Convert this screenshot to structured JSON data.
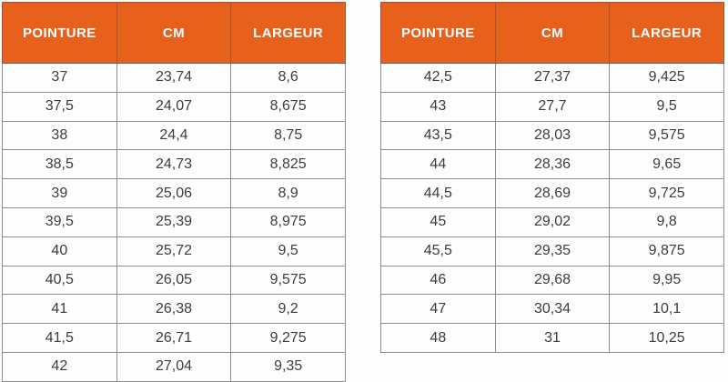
{
  "colors": {
    "header_bg": "#e8611c",
    "header_text": "#ffffff",
    "cell_text": "#3d3d3d",
    "border_inner": "#8f8f8f",
    "border_outer": "#6f6f6f",
    "page_bg": "#fdfdfd"
  },
  "chart_data": [
    {
      "type": "table",
      "title": "Size conversion table (left panel)",
      "columns": [
        "POINTURE",
        "CM",
        "LARGEUR"
      ],
      "rows": [
        [
          "37",
          "23,74",
          "8,6"
        ],
        [
          "37,5",
          "24,07",
          "8,675"
        ],
        [
          "38",
          "24,4",
          "8,75"
        ],
        [
          "38,5",
          "24,73",
          "8,825"
        ],
        [
          "39",
          "25,06",
          "8,9"
        ],
        [
          "39,5",
          "25,39",
          "8,975"
        ],
        [
          "40",
          "25,72",
          "9,5"
        ],
        [
          "40,5",
          "26,05",
          "9,575"
        ],
        [
          "41",
          "26,38",
          "9,2"
        ],
        [
          "41,5",
          "26,71",
          "9,275"
        ],
        [
          "42",
          "27,04",
          "9,35"
        ]
      ]
    },
    {
      "type": "table",
      "title": "Size conversion table (right panel)",
      "columns": [
        "POINTURE",
        "CM",
        "LARGEUR"
      ],
      "rows": [
        [
          "42,5",
          "27,37",
          "9,425"
        ],
        [
          "43",
          "27,7",
          "9,5"
        ],
        [
          "43,5",
          "28,03",
          "9,575"
        ],
        [
          "44",
          "28,36",
          "9,65"
        ],
        [
          "44,5",
          "28,69",
          "9,725"
        ],
        [
          "45",
          "29,02",
          "9,8"
        ],
        [
          "45,5",
          "29,35",
          "9,875"
        ],
        [
          "46",
          "29,68",
          "9,95"
        ],
        [
          "47",
          "30,34",
          "10,1"
        ],
        [
          "48",
          "31",
          "10,25"
        ]
      ]
    }
  ]
}
